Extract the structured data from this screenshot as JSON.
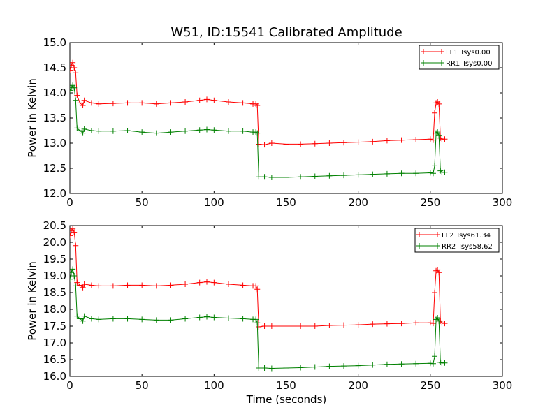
{
  "chart_data": [
    {
      "type": "line",
      "title": "W51, ID:15541 Calibrated Amplitude",
      "xlabel": "",
      "ylabel": "Power in Kelvin",
      "xlim": [
        0,
        300
      ],
      "ylim": [
        12.0,
        15.0
      ],
      "xticks": [
        "0",
        "50",
        "100",
        "150",
        "200",
        "250",
        "300"
      ],
      "yticks": [
        "12.0",
        "12.5",
        "13.0",
        "13.5",
        "14.0",
        "14.5",
        "15.0"
      ],
      "grid": false,
      "legend_position": "top-right",
      "series": [
        {
          "name": "LL1 Tsys0.00",
          "color": "#ff0000",
          "x": [
            0,
            1,
            2,
            3,
            4,
            5,
            7,
            9,
            10,
            15,
            20,
            30,
            40,
            50,
            60,
            70,
            80,
            90,
            95,
            100,
            110,
            120,
            127,
            129,
            130,
            131,
            135,
            140,
            150,
            160,
            170,
            180,
            190,
            200,
            210,
            220,
            230,
            240,
            250,
            252,
            253,
            254,
            255,
            256,
            257,
            258,
            260
          ],
          "y": [
            14.45,
            14.55,
            14.6,
            14.5,
            14.4,
            13.95,
            13.8,
            13.75,
            13.85,
            13.8,
            13.78,
            13.79,
            13.8,
            13.8,
            13.78,
            13.8,
            13.82,
            13.85,
            13.87,
            13.85,
            13.82,
            13.8,
            13.78,
            13.78,
            13.75,
            12.98,
            12.97,
            13.0,
            12.98,
            12.98,
            12.99,
            13.0,
            13.01,
            13.02,
            13.03,
            13.05,
            13.06,
            13.07,
            13.08,
            13.06,
            13.6,
            13.8,
            13.82,
            13.78,
            13.1,
            13.08,
            13.08
          ]
        },
        {
          "name": "RR1 Tsys0.00",
          "color": "#008000",
          "x": [
            0,
            1,
            2,
            3,
            4,
            5,
            7,
            9,
            10,
            15,
            20,
            30,
            40,
            50,
            60,
            70,
            80,
            90,
            95,
            100,
            110,
            120,
            127,
            129,
            130,
            131,
            135,
            140,
            150,
            160,
            170,
            180,
            190,
            200,
            210,
            220,
            230,
            240,
            250,
            252,
            253,
            254,
            255,
            256,
            257,
            258,
            260
          ],
          "y": [
            14.05,
            14.1,
            14.15,
            14.1,
            13.85,
            13.3,
            13.25,
            13.2,
            13.28,
            13.25,
            13.24,
            13.24,
            13.25,
            13.22,
            13.2,
            13.22,
            13.24,
            13.26,
            13.27,
            13.26,
            13.24,
            13.24,
            13.22,
            13.22,
            13.2,
            12.33,
            12.33,
            12.32,
            12.32,
            12.33,
            12.34,
            12.35,
            12.36,
            12.37,
            12.38,
            12.39,
            12.4,
            12.4,
            12.41,
            12.4,
            12.55,
            13.2,
            13.22,
            13.15,
            12.45,
            12.42,
            12.42
          ]
        }
      ]
    },
    {
      "type": "line",
      "title": "",
      "xlabel": "Time (seconds)",
      "ylabel": "Power in Kelvin",
      "xlim": [
        0,
        300
      ],
      "ylim": [
        16.0,
        20.5
      ],
      "xticks": [
        "0",
        "50",
        "100",
        "150",
        "200",
        "250",
        "300"
      ],
      "yticks": [
        "16.0",
        "16.5",
        "17.0",
        "17.5",
        "18.0",
        "18.5",
        "19.0",
        "19.5",
        "20.0",
        "20.5"
      ],
      "grid": false,
      "legend_position": "top-right",
      "series": [
        {
          "name": "LL2 Tsys61.34",
          "color": "#ff0000",
          "x": [
            0,
            1,
            2,
            3,
            4,
            5,
            7,
            9,
            10,
            15,
            20,
            30,
            40,
            50,
            60,
            70,
            80,
            90,
            95,
            100,
            110,
            120,
            127,
            129,
            130,
            131,
            135,
            140,
            150,
            160,
            170,
            180,
            190,
            200,
            210,
            220,
            230,
            240,
            250,
            252,
            253,
            254,
            255,
            256,
            257,
            258,
            260
          ],
          "y": [
            20.2,
            20.35,
            20.4,
            20.3,
            19.9,
            18.8,
            18.72,
            18.65,
            18.75,
            18.72,
            18.7,
            18.7,
            18.72,
            18.72,
            18.7,
            18.72,
            18.75,
            18.8,
            18.82,
            18.8,
            18.75,
            18.72,
            18.7,
            18.7,
            18.6,
            17.48,
            17.5,
            17.5,
            17.5,
            17.5,
            17.5,
            17.52,
            17.53,
            17.54,
            17.56,
            17.57,
            17.58,
            17.6,
            17.6,
            17.58,
            18.5,
            19.15,
            19.18,
            19.1,
            17.65,
            17.6,
            17.58
          ]
        },
        {
          "name": "RR2 Tsys58.62",
          "color": "#008000",
          "x": [
            0,
            1,
            2,
            3,
            4,
            5,
            7,
            9,
            10,
            15,
            20,
            30,
            40,
            50,
            60,
            70,
            80,
            90,
            95,
            100,
            110,
            120,
            127,
            129,
            130,
            131,
            135,
            140,
            150,
            160,
            170,
            180,
            190,
            200,
            210,
            220,
            230,
            240,
            250,
            252,
            253,
            254,
            255,
            256,
            257,
            258,
            260
          ],
          "y": [
            18.9,
            19.1,
            19.2,
            19.0,
            18.7,
            17.8,
            17.72,
            17.65,
            17.8,
            17.72,
            17.7,
            17.72,
            17.72,
            17.7,
            17.68,
            17.68,
            17.72,
            17.76,
            17.78,
            17.76,
            17.74,
            17.72,
            17.7,
            17.7,
            17.6,
            16.25,
            16.25,
            16.24,
            16.25,
            16.26,
            16.28,
            16.3,
            16.31,
            16.32,
            16.34,
            16.36,
            16.37,
            16.38,
            16.39,
            16.38,
            16.6,
            17.7,
            17.75,
            17.65,
            16.42,
            16.4,
            16.4
          ]
        }
      ]
    }
  ]
}
